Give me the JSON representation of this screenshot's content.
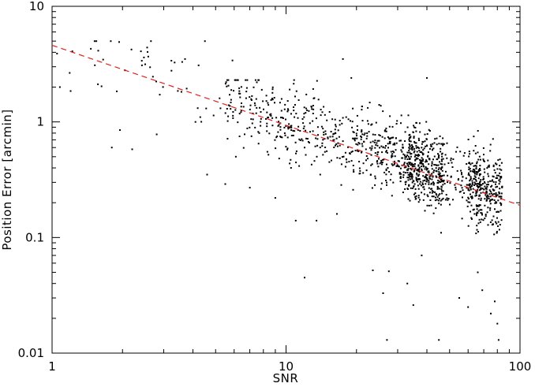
{
  "chart_data": {
    "type": "scatter",
    "title": "",
    "xlabel": "SNR",
    "ylabel": "Position Error [arcmin]",
    "xscale": "log",
    "yscale": "log",
    "xlim": [
      1,
      100
    ],
    "ylim": [
      0.01,
      10
    ],
    "grid": false,
    "legend": "none",
    "x_ticks": [
      1,
      10,
      100
    ],
    "x_tick_labels": [
      "1",
      "10",
      "100"
    ],
    "y_ticks": [
      0.01,
      0.1,
      1,
      10
    ],
    "y_tick_labels": [
      "0.01",
      "0.1",
      "1",
      "10"
    ],
    "colors": {
      "points": "#000000",
      "fit_line": "#e0201c",
      "axes": "#000000"
    },
    "fit_line": {
      "style": "dashed",
      "x": [
        1,
        100
      ],
      "y": [
        4.6,
        0.19
      ]
    },
    "point_clusters": [
      {
        "x_range": [
          1,
          6
        ],
        "y_range": [
          0.25,
          5
        ],
        "count": 40
      },
      {
        "x_range": [
          5.5,
          11
        ],
        "y_range": [
          0.25,
          2.3
        ],
        "count": 170
      },
      {
        "x_range": [
          11,
          20
        ],
        "y_range": [
          0.12,
          2.4
        ],
        "count": 150
      },
      {
        "x_range": [
          20,
          35
        ],
        "y_range": [
          0.012,
          1.5
        ],
        "count": 260
      },
      {
        "x_range": [
          33,
          47
        ],
        "y_range": [
          0.02,
          2.4
        ],
        "count": 360
      },
      {
        "x_range": [
          47,
          60
        ],
        "y_range": [
          0.02,
          1.2
        ],
        "count": 60
      },
      {
        "x_range": [
          60,
          84
        ],
        "y_range": [
          0.012,
          0.9
        ],
        "count": 330
      }
    ],
    "points": [
      [
        1.05,
        3.9
      ],
      [
        1.08,
        2.0
      ],
      [
        1.2,
        1.85
      ],
      [
        1.8,
        0.6
      ],
      [
        1.95,
        0.85
      ],
      [
        2.2,
        0.58
      ],
      [
        2.5,
        3.15
      ],
      [
        2.55,
        4.4
      ],
      [
        2.8,
        0.78
      ],
      [
        3.6,
        3.3
      ],
      [
        3.7,
        3.5
      ],
      [
        4.1,
        1.0
      ],
      [
        4.3,
        1.1
      ],
      [
        4.5,
        5.0
      ],
      [
        4.6,
        0.35
      ],
      [
        5.2,
        1.6
      ],
      [
        5.5,
        0.29
      ],
      [
        5.9,
        3.4
      ],
      [
        6.1,
        0.5
      ],
      [
        7.0,
        0.27
      ],
      [
        7.5,
        2.2
      ],
      [
        9.0,
        0.22
      ],
      [
        10.5,
        0.4
      ],
      [
        11.0,
        0.14
      ],
      [
        12.0,
        0.045
      ],
      [
        13.5,
        0.14
      ],
      [
        14.0,
        0.35
      ],
      [
        16.5,
        0.16
      ],
      [
        17.5,
        3.5
      ],
      [
        19.0,
        2.4
      ],
      [
        23.5,
        0.052
      ],
      [
        26.0,
        0.033
      ],
      [
        27.0,
        0.013
      ],
      [
        27.5,
        0.051
      ],
      [
        33.0,
        0.04
      ],
      [
        35.0,
        0.026
      ],
      [
        38.0,
        0.07
      ],
      [
        40.0,
        2.4
      ],
      [
        45.0,
        0.013
      ],
      [
        46.0,
        0.11
      ],
      [
        55.0,
        0.03
      ],
      [
        60.0,
        0.025
      ],
      [
        66.0,
        0.05
      ],
      [
        69.0,
        0.035
      ],
      [
        75.0,
        0.022
      ],
      [
        78.0,
        0.028
      ],
      [
        80.0,
        0.018
      ],
      [
        81.0,
        0.013
      ]
    ]
  }
}
